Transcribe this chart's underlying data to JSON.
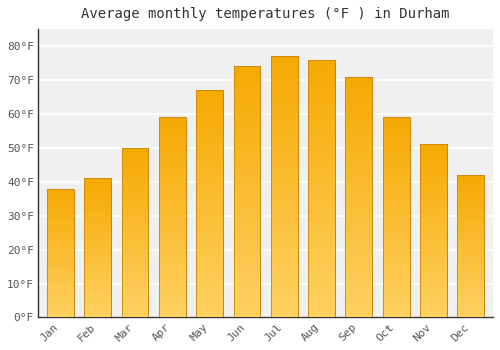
{
  "title": "Average monthly temperatures (°F ) in Durham",
  "months": [
    "Jan",
    "Feb",
    "Mar",
    "Apr",
    "May",
    "Jun",
    "Jul",
    "Aug",
    "Sep",
    "Oct",
    "Nov",
    "Dec"
  ],
  "values": [
    38,
    41,
    50,
    59,
    67,
    74,
    77,
    76,
    71,
    59,
    51,
    42
  ],
  "bar_color_top": "#F5A800",
  "bar_color_bottom": "#FFD060",
  "bar_edge_color": "#C8860A",
  "ylim": [
    0,
    85
  ],
  "yticks": [
    0,
    10,
    20,
    30,
    40,
    50,
    60,
    70,
    80
  ],
  "ytick_labels": [
    "0°F",
    "10°F",
    "20°F",
    "30°F",
    "40°F",
    "50°F",
    "60°F",
    "70°F",
    "80°F"
  ],
  "background_color": "#ffffff",
  "plot_bg_color": "#f0f0f0",
  "grid_color": "#ffffff",
  "axis_color": "#333333",
  "title_fontsize": 10,
  "tick_fontsize": 8,
  "font_family": "monospace",
  "tick_color": "#555555"
}
